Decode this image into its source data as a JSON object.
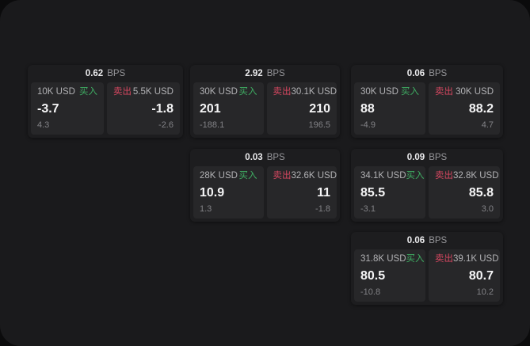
{
  "labels": {
    "bps": "BPS",
    "buy": "买入",
    "sell": "卖出"
  },
  "colors": {
    "page_bg": "#0b0b0c",
    "panel_bg": "#1a1a1c",
    "card_bg": "#1d1d1f",
    "tile_bg": "#272729",
    "buy_accent": "#3fae63",
    "sell_accent": "#d54760"
  },
  "cards": [
    {
      "bps": "0.62",
      "buy": {
        "amount": "10K USD",
        "value": "-3.7",
        "delta": "4.3"
      },
      "sell": {
        "amount": "5.5K USD",
        "value": "-1.8",
        "delta": "-2.6"
      }
    },
    {
      "bps": "2.92",
      "buy": {
        "amount": "30K USD",
        "value": "201",
        "delta": "-188.1"
      },
      "sell": {
        "amount": "30.1K USD",
        "value": "210",
        "delta": "196.5"
      }
    },
    {
      "bps": "0.06",
      "buy": {
        "amount": "30K USD",
        "value": "88",
        "delta": "-4.9"
      },
      "sell": {
        "amount": "30K USD",
        "value": "88.2",
        "delta": "4.7"
      }
    },
    {
      "bps": "0.03",
      "buy": {
        "amount": "28K USD",
        "value": "10.9",
        "delta": "1.3"
      },
      "sell": {
        "amount": "32.6K USD",
        "value": "11",
        "delta": "-1.8"
      }
    },
    {
      "bps": "0.09",
      "buy": {
        "amount": "34.1K USD",
        "value": "85.5",
        "delta": "-3.1"
      },
      "sell": {
        "amount": "32.8K USD",
        "value": "85.8",
        "delta": "3.0"
      }
    },
    {
      "bps": "0.06",
      "buy": {
        "amount": "31.8K USD",
        "value": "80.5",
        "delta": "-10.8"
      },
      "sell": {
        "amount": "39.1K USD",
        "value": "80.7",
        "delta": "10.2"
      }
    }
  ]
}
